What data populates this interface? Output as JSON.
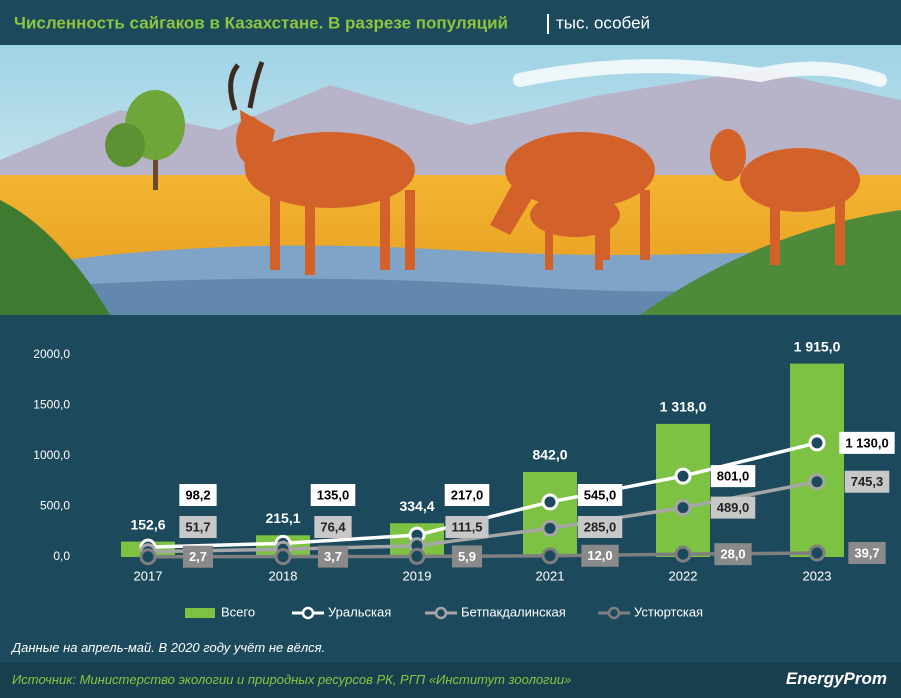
{
  "chart_data": {
    "type": "bar",
    "title": "Численность сайгаков в Казахстане. В разрезе популяций",
    "subtitle": "тыс. особей",
    "categories": [
      "2017",
      "2018",
      "2019",
      "2021",
      "2022",
      "2023"
    ],
    "series": [
      {
        "name": "Всего",
        "type": "bar",
        "color": "#7dc242",
        "values": [
          152.6,
          215.1,
          334.4,
          842.0,
          1318.0,
          1915.0
        ],
        "value_labels": [
          "152,6",
          "215,1",
          "334,4",
          "842,0",
          "1 318,0",
          "1 915,0"
        ]
      },
      {
        "name": "Уральская",
        "type": "line",
        "color": "#ffffff",
        "values": [
          98.2,
          135.0,
          217.0,
          545.0,
          801.0,
          1130.0
        ],
        "value_labels": [
          "98,2",
          "135,0",
          "217,0",
          "545,0",
          "801,0",
          "1 130,0"
        ]
      },
      {
        "name": "Бетпакдалинская",
        "type": "line",
        "color": "#a6a6a6",
        "values": [
          51.7,
          76.4,
          111.5,
          285.0,
          489.0,
          745.3
        ],
        "value_labels": [
          "51,7",
          "76,4",
          "111,5",
          "285,0",
          "489,0",
          "745,3"
        ]
      },
      {
        "name": "Устюртская",
        "type": "line",
        "color": "#7f7f7f",
        "values": [
          2.7,
          3.7,
          5.9,
          12.0,
          28.0,
          39.7
        ],
        "value_labels": [
          "2,7",
          "3,7",
          "5,9",
          "12,0",
          "28,0",
          "39,7"
        ]
      }
    ],
    "ylim": [
      0,
      2000
    ],
    "yticks": [
      {
        "value": 0,
        "label": "0,0"
      },
      {
        "value": 500,
        "label": "500,0"
      },
      {
        "value": 1000,
        "label": "1000,0"
      },
      {
        "value": 1500,
        "label": "1500,0"
      },
      {
        "value": 2000,
        "label": "2000,0"
      }
    ],
    "note": "Данные на апрель-май. В 2020 году учёт не вёлся.",
    "source": "Источник: Министерство экологии и природных ресурсов РК, РГП «Институт зоологии»",
    "brand": "EnergyProm"
  }
}
